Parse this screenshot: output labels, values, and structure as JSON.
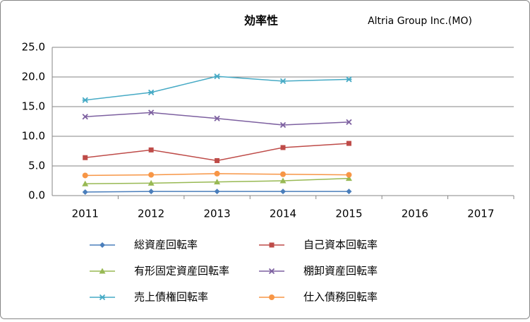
{
  "chart_data": {
    "type": "line",
    "title": "効率性",
    "subtitle": "Altria Group Inc.(MO)",
    "categories": [
      "2011",
      "2012",
      "2013",
      "2014",
      "2015",
      "2016",
      "2017"
    ],
    "ylim": [
      0,
      25
    ],
    "yticks": [
      {
        "value": 0,
        "label": "0.0"
      },
      {
        "value": 5,
        "label": "5.0"
      },
      {
        "value": 10,
        "label": "10.0"
      },
      {
        "value": 15,
        "label": "15.0"
      },
      {
        "value": 20,
        "label": "20.0"
      },
      {
        "value": 25,
        "label": "25.0"
      }
    ],
    "grid": true,
    "legend": "bottom",
    "series": [
      {
        "name": "総資産回転率",
        "color": "#4a7ebb",
        "marker": "diamond",
        "values": [
          0.6,
          0.7,
          0.7,
          0.7,
          0.7,
          null,
          null
        ]
      },
      {
        "name": "自己資本回転率",
        "color": "#be4b48",
        "marker": "square",
        "values": [
          6.4,
          7.7,
          5.9,
          8.1,
          8.8,
          null,
          null
        ]
      },
      {
        "name": "有形固定資産回転率",
        "color": "#98b954",
        "marker": "triangle",
        "values": [
          2.0,
          2.1,
          2.3,
          2.5,
          2.9,
          null,
          null
        ]
      },
      {
        "name": "棚卸資産回転率",
        "color": "#7d60a0",
        "marker": "x",
        "values": [
          13.3,
          14.0,
          13.0,
          11.9,
          12.4,
          null,
          null
        ]
      },
      {
        "name": "売上債権回転率",
        "color": "#46aac5",
        "marker": "star",
        "values": [
          16.1,
          17.4,
          20.1,
          19.3,
          19.6,
          null,
          null
        ]
      },
      {
        "name": "仕入債務回転率",
        "color": "#f79646",
        "marker": "circle",
        "values": [
          3.4,
          3.5,
          3.7,
          3.6,
          3.5,
          null,
          null
        ]
      }
    ]
  }
}
